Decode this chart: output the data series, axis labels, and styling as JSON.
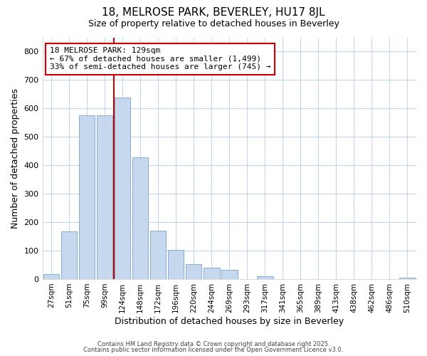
{
  "title1": "18, MELROSE PARK, BEVERLEY, HU17 8JL",
  "title2": "Size of property relative to detached houses in Beverley",
  "xlabel": "Distribution of detached houses by size in Beverley",
  "ylabel": "Number of detached properties",
  "categories": [
    "27sqm",
    "51sqm",
    "75sqm",
    "99sqm",
    "124sqm",
    "148sqm",
    "172sqm",
    "196sqm",
    "220sqm",
    "244sqm",
    "269sqm",
    "293sqm",
    "317sqm",
    "341sqm",
    "365sqm",
    "389sqm",
    "413sqm",
    "438sqm",
    "462sqm",
    "486sqm",
    "510sqm"
  ],
  "values": [
    18,
    168,
    575,
    575,
    638,
    428,
    170,
    103,
    52,
    40,
    32,
    0,
    10,
    0,
    0,
    0,
    0,
    0,
    0,
    0,
    5
  ],
  "bar_color": "#c5d8ed",
  "bar_edgecolor": "#85aed4",
  "vline_x": 3.5,
  "vline_color": "#cc0000",
  "annotation_text": "18 MELROSE PARK: 129sqm\n← 67% of detached houses are smaller (1,499)\n33% of semi-detached houses are larger (745) →",
  "annotation_box_color": "#ffffff",
  "annotation_box_edgecolor": "#cc0000",
  "ylim": [
    0,
    850
  ],
  "yticks": [
    0,
    100,
    200,
    300,
    400,
    500,
    600,
    700,
    800
  ],
  "footer1": "Contains HM Land Registry data © Crown copyright and database right 2025.",
  "footer2": "Contains public sector information licensed under the Open Government Licence v3.0.",
  "bg_color": "#ffffff",
  "plot_bg_color": "#ffffff",
  "grid_color": "#c8d4e8"
}
